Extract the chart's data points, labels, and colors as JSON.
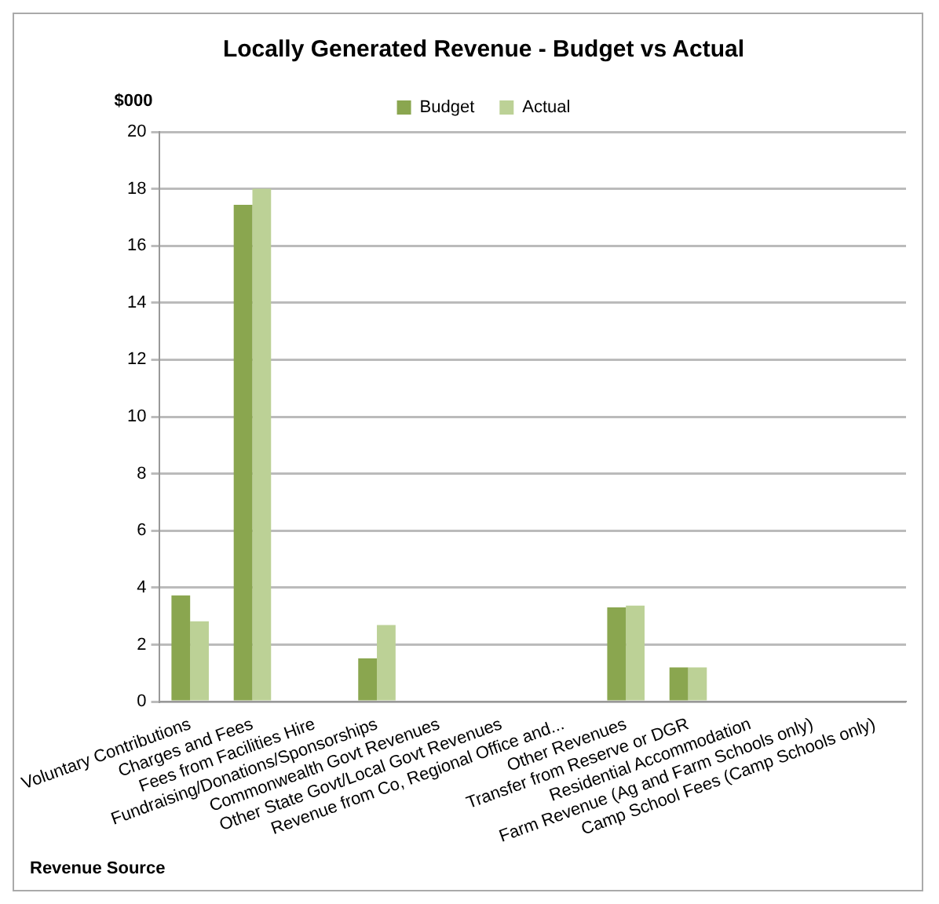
{
  "chart_data": {
    "type": "bar",
    "title": "Locally Generated Revenue - Budget vs Actual",
    "xlabel": "Revenue Source",
    "ylabel": "$000",
    "categories": [
      "Voluntary Contributions",
      "Charges and Fees",
      "Fees from Facilities Hire",
      "Fundraising/Donations/Sponsorships",
      "Commonwealth Govt Revenues",
      "Other State Govt/Local Govt Revenues",
      "Revenue from Co, Regional Office and...",
      "Other Revenues",
      "Transfer from Reserve or DGR",
      "Residential Accommodation",
      "Farm Revenue (Ag and Farm Schools only)",
      "Camp School Fees (Camp Schools only)"
    ],
    "series": [
      {
        "name": "Budget",
        "color": "#8aa64f",
        "values": [
          3.73,
          17.44,
          0,
          1.52,
          0,
          0,
          0,
          3.31,
          1.2,
          0,
          0,
          0
        ]
      },
      {
        "name": "Actual",
        "color": "#bcd196",
        "values": [
          2.82,
          18.0,
          0,
          2.69,
          0,
          0,
          0,
          3.37,
          1.2,
          0,
          0,
          0
        ]
      }
    ],
    "ylim": [
      0,
      20
    ],
    "yticks": [
      0,
      2,
      4,
      6,
      8,
      10,
      12,
      14,
      16,
      18,
      20
    ],
    "grid": "y",
    "legend": "top"
  }
}
